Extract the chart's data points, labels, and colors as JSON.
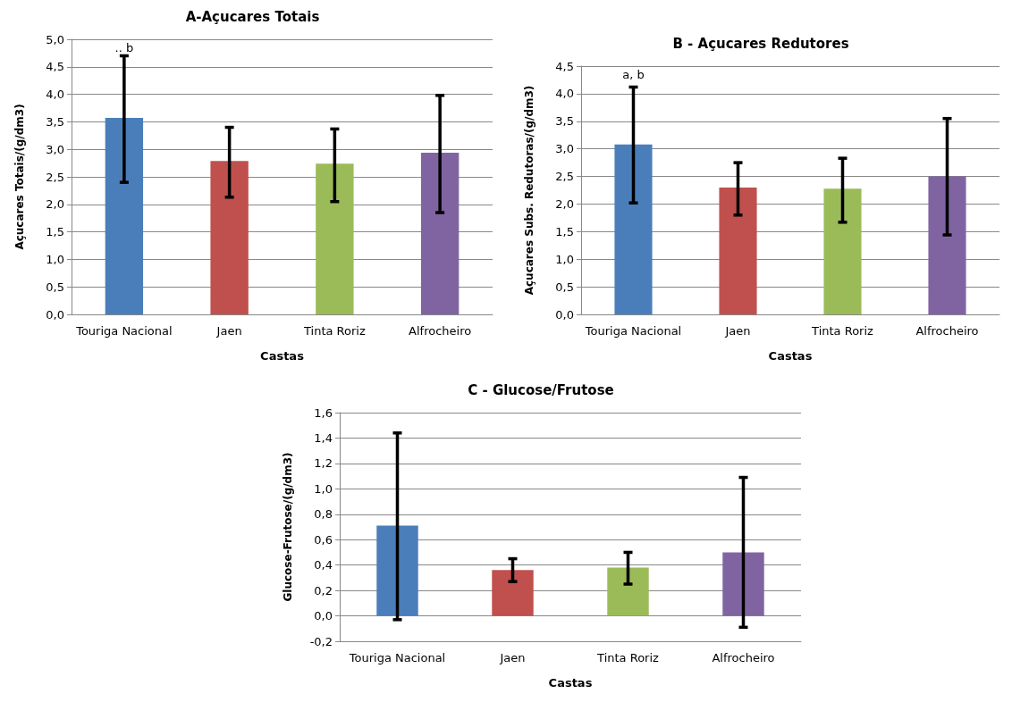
{
  "chart_data": [
    {
      "type": "bar",
      "title": "A-Açucares Totais",
      "xlabel": "Castas",
      "ylabel": "Açucares Totais/(g/dm3)",
      "categories": [
        "Touriga Nacional",
        "Jaen",
        "Tinta Roriz",
        "Alfrocheiro"
      ],
      "values": [
        3.57,
        2.79,
        2.74,
        2.94
      ],
      "colors": [
        "#4a7ebb",
        "#c0504d",
        "#9bbb59",
        "#8064a2"
      ],
      "errors": [
        [
          2.4,
          4.7
        ],
        [
          2.13,
          3.4
        ],
        [
          2.05,
          3.37
        ],
        [
          1.85,
          3.98
        ]
      ],
      "ylim": [
        0,
        5
      ],
      "yticks": [
        {
          "value": 0,
          "label": "0,0"
        },
        {
          "value": 0.5,
          "label": "0,5"
        },
        {
          "value": 1,
          "label": "1,0"
        },
        {
          "value": 1.5,
          "label": "1,5"
        },
        {
          "value": 2,
          "label": "2,0"
        },
        {
          "value": 2.5,
          "label": "2,5"
        },
        {
          "value": 3,
          "label": "3,0"
        },
        {
          "value": 3.5,
          "label": "3,5"
        },
        {
          "value": 4,
          "label": "4,0"
        },
        {
          "value": 4.5,
          "label": "4,5"
        },
        {
          "value": 5,
          "label": "5,0"
        }
      ],
      "grid": "y",
      "annotations": [
        ".. b"
      ]
    },
    {
      "type": "bar",
      "title": "B - Açucares Redutores",
      "xlabel": "Castas",
      "ylabel": "Açucares Subs. Redutoras/(g/dm3)",
      "categories": [
        "Touriga Nacional",
        "Jaen",
        "Tinta Roriz",
        "Alfrocheiro"
      ],
      "values": [
        3.08,
        2.3,
        2.28,
        2.5
      ],
      "colors": [
        "#4a7ebb",
        "#c0504d",
        "#9bbb59",
        "#8064a2"
      ],
      "errors": [
        [
          2.02,
          4.12
        ],
        [
          1.8,
          2.75
        ],
        [
          1.67,
          2.83
        ],
        [
          1.44,
          3.55
        ]
      ],
      "ylim": [
        0,
        4.5
      ],
      "yticks": [
        {
          "value": 0,
          "label": "0,0"
        },
        {
          "value": 0.5,
          "label": "0,5"
        },
        {
          "value": 1,
          "label": "1,0"
        },
        {
          "value": 1.5,
          "label": "1,5"
        },
        {
          "value": 2,
          "label": "2,0"
        },
        {
          "value": 2.5,
          "label": "2,5"
        },
        {
          "value": 3,
          "label": "3,0"
        },
        {
          "value": 3.5,
          "label": "3,5"
        },
        {
          "value": 4,
          "label": "4,0"
        },
        {
          "value": 4.5,
          "label": "4,5"
        }
      ],
      "grid": "y",
      "annotations": [
        "a, b"
      ]
    },
    {
      "type": "bar",
      "title": "C - Glucose/Frutose",
      "xlabel": "Castas",
      "ylabel": "Glucose-Frutose/(g/dm3)",
      "categories": [
        "Touriga Nacional",
        "Jaen",
        "Tinta Roriz",
        "Alfrocheiro"
      ],
      "values": [
        0.71,
        0.36,
        0.38,
        0.5
      ],
      "colors": [
        "#4a7ebb",
        "#c0504d",
        "#9bbb59",
        "#8064a2"
      ],
      "errors": [
        [
          -0.03,
          1.44
        ],
        [
          0.27,
          0.45
        ],
        [
          0.25,
          0.5
        ],
        [
          -0.09,
          1.09
        ]
      ],
      "ylim": [
        -0.2,
        1.6
      ],
      "yticks": [
        {
          "value": -0.2,
          "label": "-0,2"
        },
        {
          "value": 0,
          "label": "0,0"
        },
        {
          "value": 0.2,
          "label": "0,2"
        },
        {
          "value": 0.4,
          "label": "0,4"
        },
        {
          "value": 0.6,
          "label": "0,6"
        },
        {
          "value": 0.8,
          "label": "0,8"
        },
        {
          "value": 1,
          "label": "1,0"
        },
        {
          "value": 1.2,
          "label": "1,2"
        },
        {
          "value": 1.4,
          "label": "1,4"
        },
        {
          "value": 1.6,
          "label": "1,6"
        }
      ],
      "grid": "y"
    }
  ]
}
